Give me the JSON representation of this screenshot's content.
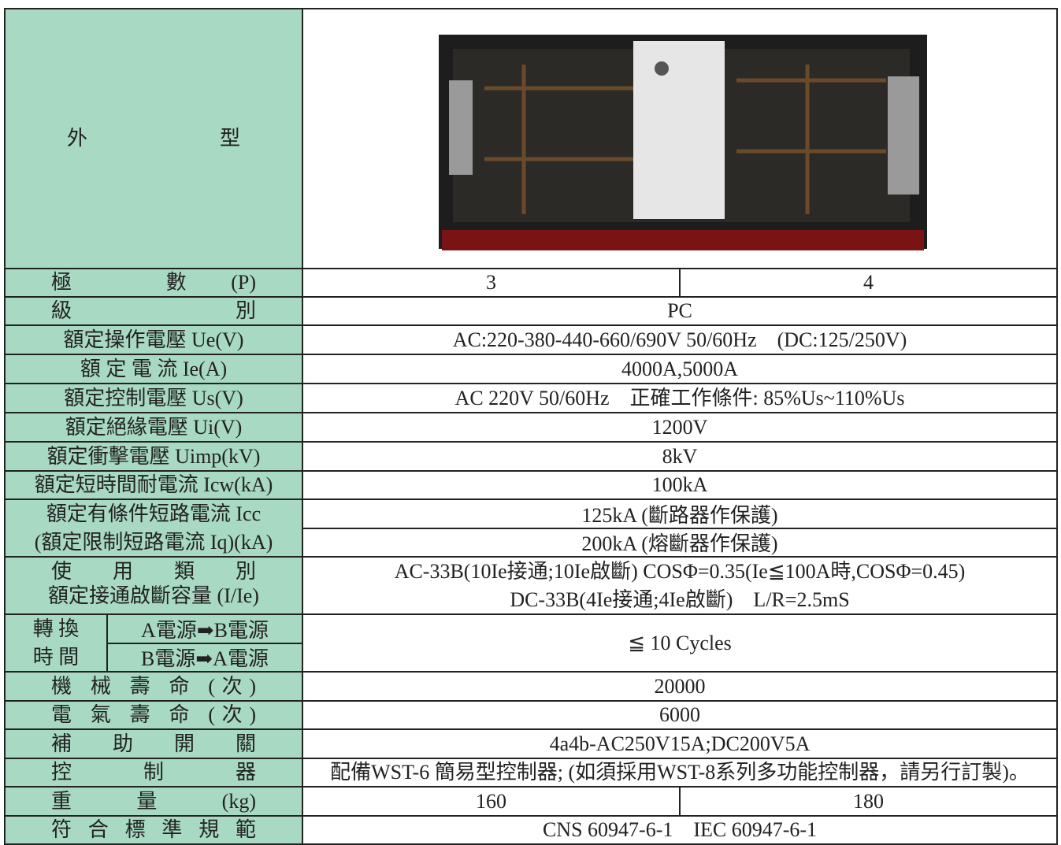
{
  "table": {
    "rows": [
      {
        "label": [
          "外 型"
        ]
      },
      {
        "label": [
          "極 數(P)"
        ],
        "values": [
          "3",
          "4"
        ]
      },
      {
        "label": [
          "級 別"
        ],
        "values": [
          "PC"
        ]
      },
      {
        "label": [
          "額定操作電壓 Ue(V)"
        ],
        "values": [
          "AC:220-380-440-660/690V 50/60Hz　(DC:125/250V)"
        ]
      },
      {
        "label": [
          "額 定 電 流 Ie(A)"
        ],
        "values": [
          "4000A,5000A"
        ]
      },
      {
        "label": [
          "額定控制電壓 Us(V)"
        ],
        "values": [
          "AC 220V 50/60Hz　正確工作條件: 85%Us~110%Us"
        ]
      },
      {
        "label": [
          "額定絕緣電壓 Ui(V)"
        ],
        "values": [
          "1200V"
        ]
      },
      {
        "label": [
          "額定衝擊電壓 Uimp(kV)"
        ],
        "values": [
          "8kV"
        ]
      },
      {
        "label": [
          "額定短時間耐電流 Icw(kA)"
        ],
        "values": [
          "100kA"
        ]
      },
      {
        "label": [
          "額定有條件短路電流 Icc",
          "(額定限制短路電流 Iq)(kA)"
        ],
        "values": [
          "125kA (斷路器作保護)",
          "200kA (熔斷器作保護)"
        ]
      },
      {
        "label": [
          "使 用 類 別",
          "額定接通啟斷容量 (I/Ie)"
        ],
        "values": [
          "AC-33B(10Ie接通;10Ie啟斷) COSΦ=0.35(Ie≦100A時,COSΦ=0.45)",
          "DC-33B(4Ie接通;4Ie啟斷)　L/R=2.5mS"
        ]
      },
      {
        "label": [
          "轉 換",
          "時 間"
        ],
        "sub_labels": [
          "A電源➡B電源",
          "B電源➡A電源"
        ],
        "values": [
          "≦ 10 Cycles"
        ]
      },
      {
        "label": [
          "機 械 壽 命 (次)"
        ],
        "values": [
          "20000"
        ]
      },
      {
        "label": [
          "電 氣 壽 命 (次)"
        ],
        "values": [
          "6000"
        ]
      },
      {
        "label": [
          "補 助 開 關"
        ],
        "values": [
          "4a4b-AC250V15A;DC200V5A"
        ]
      },
      {
        "label": [
          "控 制 器"
        ],
        "values": [
          "配備WST-6 簡易型控制器; (如須採用WST-8系列多功能控制器，請另行訂製)。"
        ]
      },
      {
        "label": [
          "重 量 (kg)"
        ],
        "values": [
          "160",
          "180"
        ]
      },
      {
        "label": [
          "符 合 標 準 規 範"
        ],
        "values": [
          "CNS 60947-6-1　IEC 60947-6-1"
        ]
      }
    ]
  }
}
